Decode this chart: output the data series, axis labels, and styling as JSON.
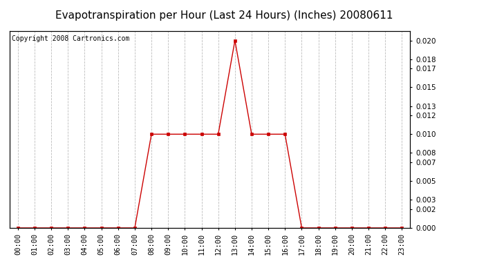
{
  "title": "Evapotranspiration per Hour (Last 24 Hours) (Inches) 20080611",
  "copyright": "Copyright 2008 Cartronics.com",
  "hours": [
    "00:00",
    "01:00",
    "02:00",
    "03:00",
    "04:00",
    "05:00",
    "06:00",
    "07:00",
    "08:00",
    "09:00",
    "10:00",
    "11:00",
    "12:00",
    "13:00",
    "14:00",
    "15:00",
    "16:00",
    "17:00",
    "18:00",
    "19:00",
    "20:00",
    "21:00",
    "22:00",
    "23:00"
  ],
  "values": [
    0.0,
    0.0,
    0.0,
    0.0,
    0.0,
    0.0,
    0.0,
    0.0,
    0.01,
    0.01,
    0.01,
    0.01,
    0.01,
    0.02,
    0.01,
    0.01,
    0.01,
    0.0,
    0.0,
    0.0,
    0.0,
    0.0,
    0.0,
    0.0
  ],
  "line_color": "#cc0000",
  "marker_color": "#cc0000",
  "bg_color": "#ffffff",
  "plot_bg_color": "#ffffff",
  "grid_color": "#bbbbbb",
  "yticks": [
    0.0,
    0.002,
    0.003,
    0.005,
    0.007,
    0.008,
    0.01,
    0.012,
    0.013,
    0.015,
    0.017,
    0.018,
    0.02
  ],
  "ylim": [
    0.0,
    0.021
  ],
  "title_fontsize": 11,
  "copyright_fontsize": 7,
  "tick_fontsize": 7.5
}
